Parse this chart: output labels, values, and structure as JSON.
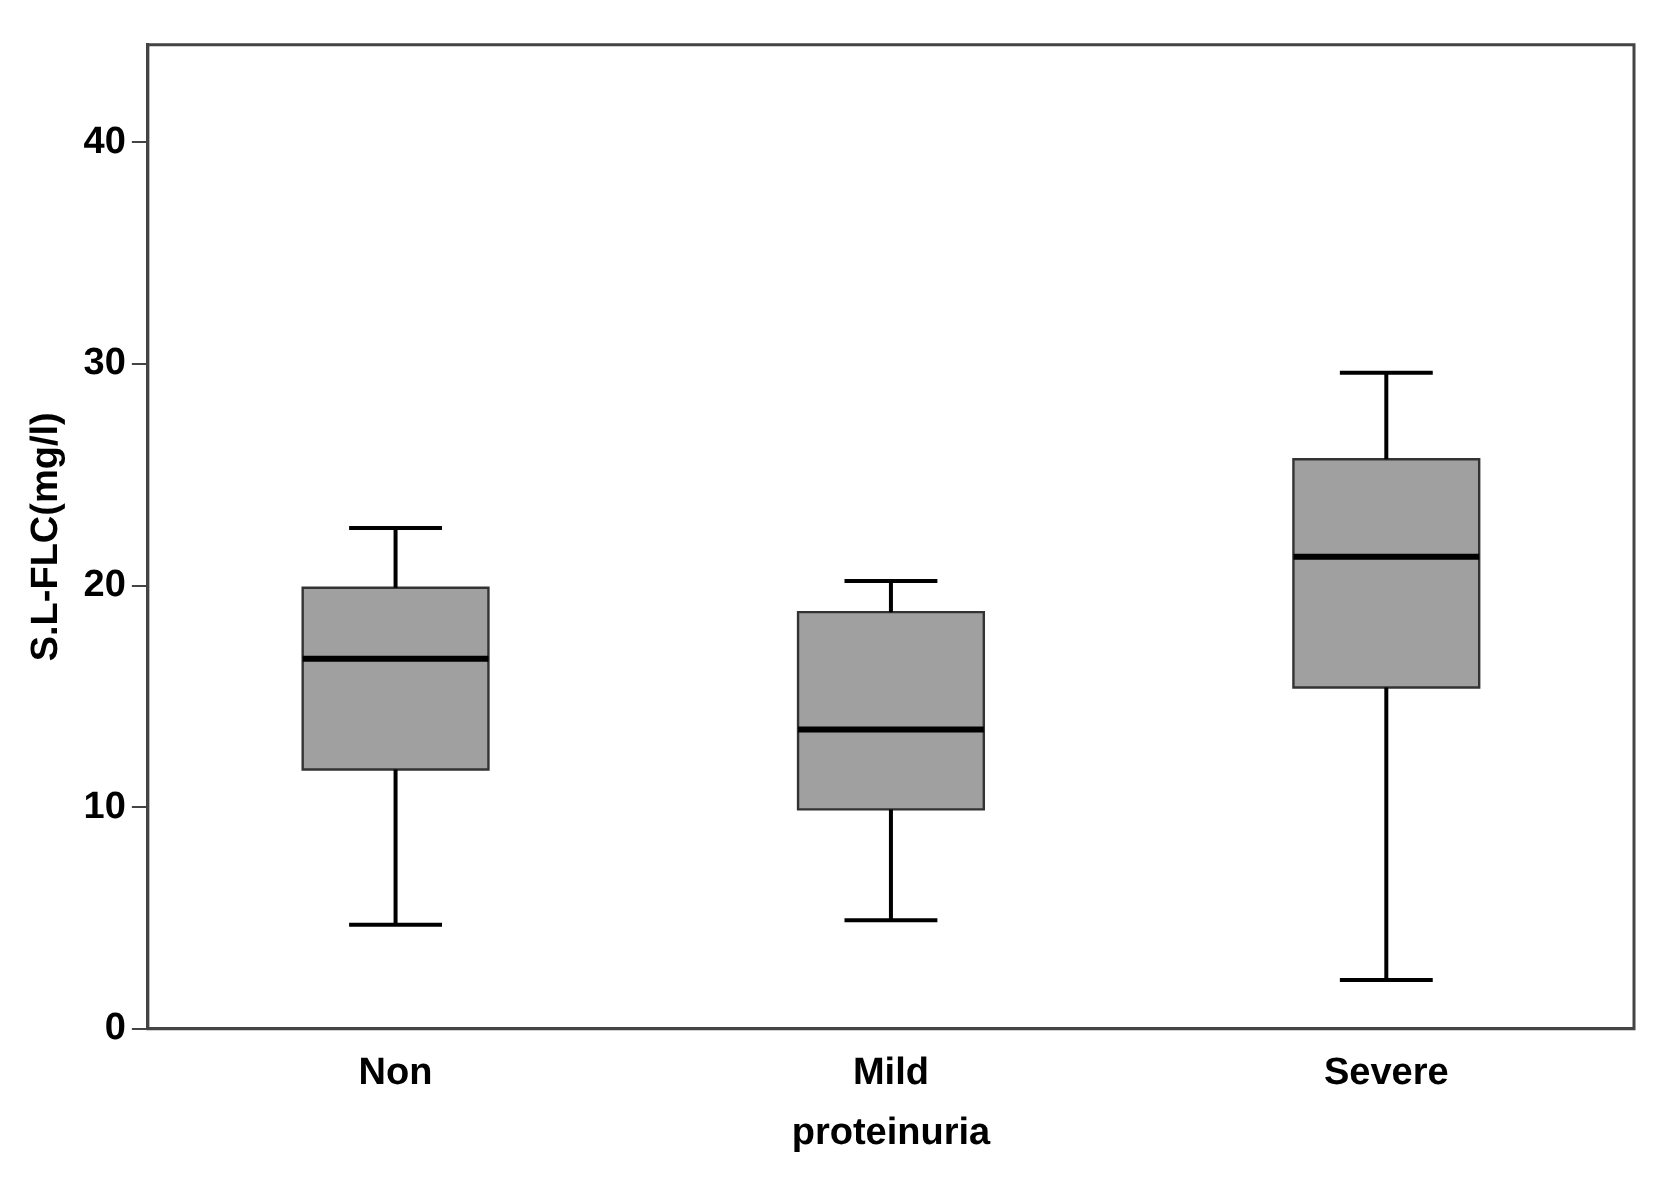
{
  "chart_data": {
    "type": "box",
    "xlabel": "proteinuria",
    "ylabel": "S.L-FLC(mg/l)",
    "categories": [
      "Non",
      "Mild",
      "Severe"
    ],
    "color": "#a0a0a0",
    "boxes": [
      {
        "low": 4.7,
        "q1": 11.7,
        "median": 16.7,
        "q3": 19.9,
        "high": 22.6
      },
      {
        "low": 4.9,
        "q1": 9.9,
        "median": 13.5,
        "q3": 18.8,
        "high": 20.2
      },
      {
        "low": 2.2,
        "q1": 15.4,
        "median": 21.3,
        "q3": 25.7,
        "high": 29.6
      }
    ],
    "ylim": [
      0,
      44.4
    ],
    "yticks": [
      0,
      10,
      20,
      30,
      40
    ]
  }
}
